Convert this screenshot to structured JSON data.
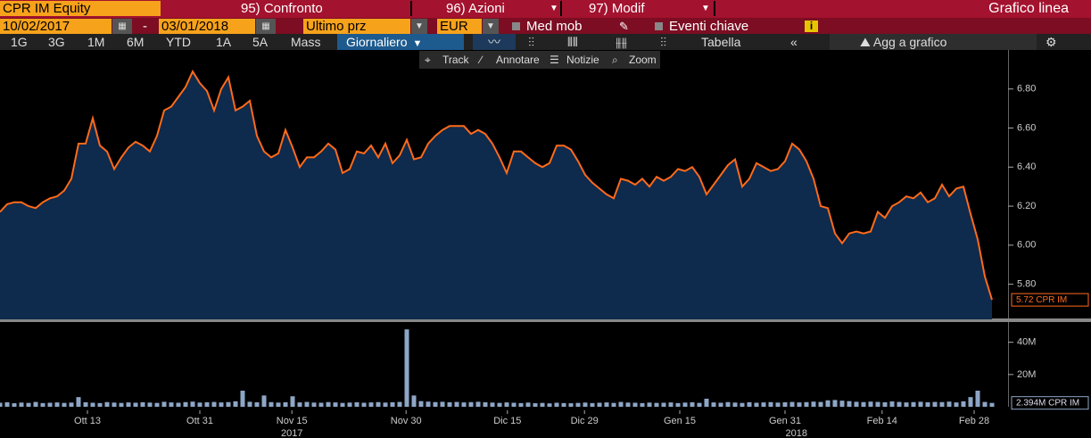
{
  "toolbar": {
    "ticker": "CPR IM Equity",
    "menu": [
      "95) Confronto",
      "96) Azioni",
      "97) Modif"
    ],
    "chart_type": "Grafico linea"
  },
  "controls": {
    "start": "10/02/2017",
    "dash": "-",
    "end": "03/01/2018",
    "field": "Ultimo prz",
    "currency": "EUR",
    "checks": [
      "Med mob",
      "Eventi chiave"
    ]
  },
  "periods": [
    "1G",
    "3G",
    "1M",
    "6M",
    "YTD",
    "1A",
    "5A",
    "Mass"
  ],
  "frequency": "Giornaliero",
  "table": "Tabella",
  "collapse": "«",
  "add": "Agg a grafico",
  "tools": [
    "Track",
    "Annotare",
    "Notizie",
    "Zoom"
  ],
  "chart_data": [
    {
      "type": "line",
      "color": "#ff6a1a",
      "fill": "#0e2a4c",
      "values": [
        6.17,
        6.21,
        6.22,
        6.22,
        6.2,
        6.19,
        6.22,
        6.24,
        6.25,
        6.28,
        6.34,
        6.52,
        6.52,
        6.65,
        6.51,
        6.48,
        6.39,
        6.45,
        6.5,
        6.53,
        6.51,
        6.48,
        6.56,
        6.69,
        6.71,
        6.76,
        6.81,
        6.89,
        6.83,
        6.79,
        6.69,
        6.8,
        6.86,
        6.69,
        6.71,
        6.74,
        6.56,
        6.48,
        6.45,
        6.47,
        6.59,
        6.5,
        6.4,
        6.45,
        6.45,
        6.48,
        6.52,
        6.49,
        6.37,
        6.39,
        6.48,
        6.47,
        6.51,
        6.45,
        6.52,
        6.42,
        6.46,
        6.54,
        6.44,
        6.45,
        6.52,
        6.56,
        6.59,
        6.61,
        6.61,
        6.61,
        6.57,
        6.59,
        6.57,
        6.52,
        6.45,
        6.37,
        6.48,
        6.48,
        6.45,
        6.42,
        6.4,
        6.42,
        6.51,
        6.51,
        6.49,
        6.43,
        6.36,
        6.32,
        6.29,
        6.26,
        6.24,
        6.34,
        6.33,
        6.31,
        6.34,
        6.3,
        6.35,
        6.33,
        6.35,
        6.39,
        6.38,
        6.4,
        6.35,
        6.26,
        6.31,
        6.36,
        6.41,
        6.44,
        6.3,
        6.34,
        6.42,
        6.4,
        6.38,
        6.39,
        6.43,
        6.52,
        6.49,
        6.43,
        6.34,
        6.2,
        6.19,
        6.06,
        6.01,
        6.06,
        6.07,
        6.06,
        6.07,
        6.17,
        6.14,
        6.2,
        6.22,
        6.25,
        6.24,
        6.27,
        6.22,
        6.24,
        6.31,
        6.25,
        6.29,
        6.3,
        6.16,
        6.03,
        5.84,
        5.72
      ],
      "last_label": "5.72 CPR IM",
      "xlim": [
        0,
        141.25
      ],
      "ylim": [
        5.62,
        7.0
      ],
      "yticks": [
        {
          "value": 5.8,
          "label": "5.80"
        },
        {
          "value": 6.0,
          "label": "6.00"
        },
        {
          "value": 6.2,
          "label": "6.20"
        },
        {
          "value": 6.4,
          "label": "6.40"
        },
        {
          "value": 6.6,
          "label": "6.60"
        },
        {
          "value": 6.8,
          "label": "6.80"
        }
      ]
    },
    {
      "type": "bar",
      "color": "#8ea6c6",
      "values": [
        2.5,
        2.8,
        2.2,
        2.6,
        2.4,
        3.0,
        2.3,
        2.5,
        2.7,
        2.4,
        2.6,
        6.0,
        2.8,
        2.5,
        2.3,
        2.9,
        2.6,
        2.4,
        2.7,
        2.5,
        2.8,
        2.6,
        2.4,
        3.1,
        2.7,
        2.5,
        2.9,
        3.2,
        2.6,
        2.8,
        3.0,
        2.7,
        2.9,
        3.4,
        10.0,
        3.1,
        2.8,
        7.0,
        2.9,
        2.6,
        2.8,
        6.5,
        2.7,
        3.0,
        2.6,
        2.5,
        2.9,
        2.7,
        2.4,
        2.6,
        2.8,
        2.5,
        2.7,
        2.9,
        2.6,
        2.8,
        3.0,
        48.0,
        7.0,
        3.5,
        3.2,
        2.9,
        3.1,
        2.8,
        3.0,
        2.7,
        2.9,
        3.1,
        2.8,
        2.6,
        2.4,
        2.7,
        2.5,
        2.3,
        2.6,
        2.2,
        2.4,
        2.1,
        2.5,
        2.3,
        2.2,
        2.4,
        2.6,
        2.3,
        2.5,
        2.7,
        2.4,
        3.0,
        2.6,
        2.5,
        2.3,
        2.6,
        2.4,
        2.5,
        2.7,
        2.3,
        2.6,
        2.8,
        2.4,
        5.0,
        2.7,
        2.5,
        2.9,
        2.6,
        2.4,
        2.8,
        2.5,
        2.7,
        2.9,
        2.6,
        2.8,
        3.0,
        2.7,
        2.9,
        3.2,
        3.0,
        4.0,
        4.2,
        3.8,
        3.5,
        3.1,
        2.9,
        3.2,
        3.0,
        2.8,
        3.3,
        3.0,
        2.7,
        2.9,
        3.1,
        2.8,
        3.0,
        2.9,
        3.2,
        2.7,
        3.4,
        6.0,
        10.0,
        3.0,
        2.394
      ],
      "last_label": "2.394M CPR IM",
      "xlim": [
        0,
        141.25
      ],
      "ylim": [
        0,
        52
      ],
      "yticks": [
        {
          "value": 20,
          "label": "20M"
        },
        {
          "value": 40,
          "label": "40M"
        }
      ],
      "xticks": [
        {
          "value": 12.25,
          "label": "Ott 13"
        },
        {
          "value": 28,
          "label": "Ott 31"
        },
        {
          "value": 40.9,
          "label": "Nov 15"
        },
        {
          "value": 56.9,
          "label": "Nov 30"
        },
        {
          "value": 71.1,
          "label": "Dic 15"
        },
        {
          "value": 81.9,
          "label": "Dic 29"
        },
        {
          "value": 95.25,
          "label": "Gen 15"
        },
        {
          "value": 110,
          "label": "Gen 31"
        },
        {
          "value": 123.6,
          "label": "Feb 14"
        },
        {
          "value": 136.5,
          "label": "Feb 28"
        }
      ],
      "year_labels": [
        {
          "value": 40.9,
          "label": "2017"
        },
        {
          "value": 111.6,
          "label": "2018"
        }
      ]
    }
  ]
}
